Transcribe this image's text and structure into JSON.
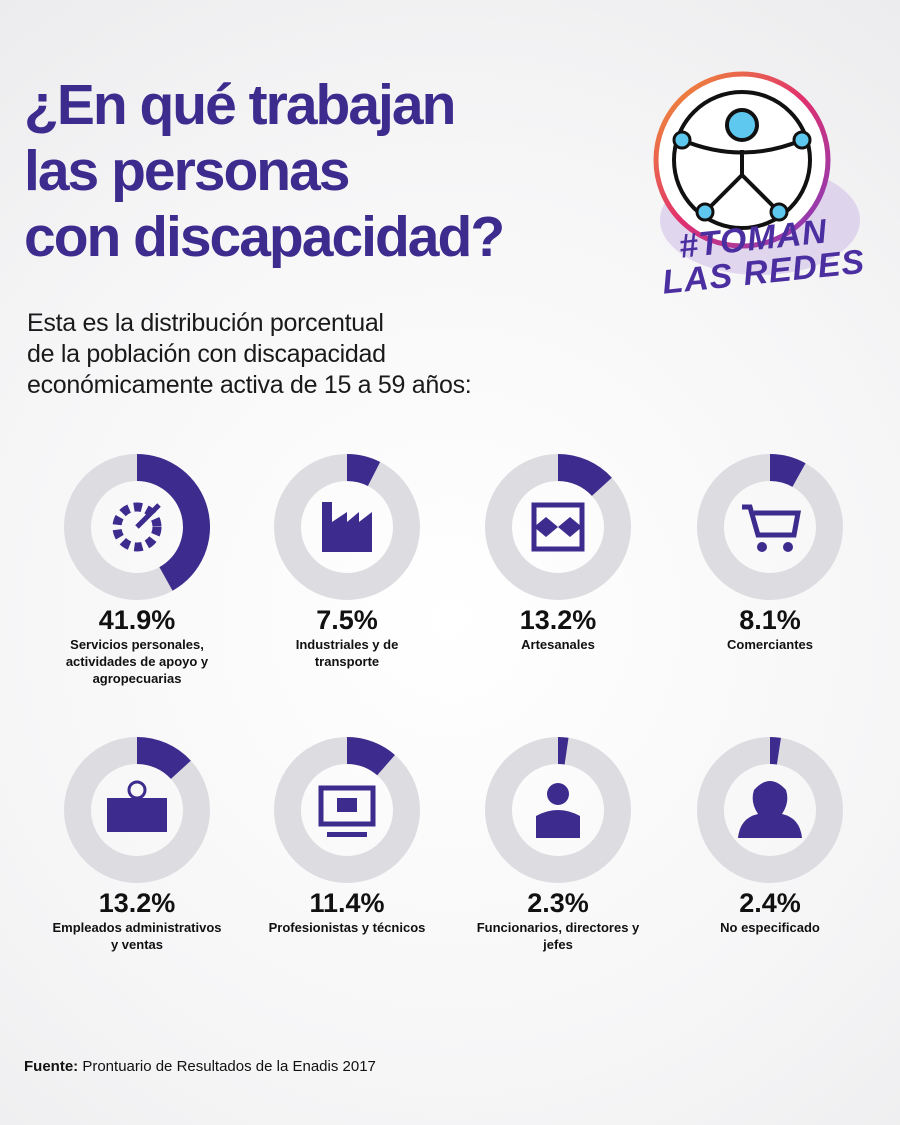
{
  "header": {
    "title_lines": [
      "¿En qué trabajan",
      "las personas",
      "con discapacidad?"
    ],
    "subtitle_lines": [
      "Esta es la distribución porcentual",
      "de la población con discapacidad",
      "económicamente activa de 15 a 59 años:"
    ],
    "logo_lines": [
      "#TOMAN",
      "LAS REDES"
    ]
  },
  "chart_data": [
    {
      "type": "donut",
      "categories": [
        "Servicios personales, actividades de apoyo y agropecuarias"
      ],
      "values": [
        41.9
      ],
      "value_labels": [
        "41.9%"
      ],
      "color": "#3d2b8e",
      "track_color": "#dddde1"
    },
    {
      "type": "donut",
      "categories": [
        "Industriales y de transporte"
      ],
      "values": [
        7.5
      ],
      "value_labels": [
        "7.5%"
      ],
      "color": "#3d2b8e",
      "track_color": "#dddde1"
    },
    {
      "type": "donut",
      "categories": [
        "Artesanales"
      ],
      "values": [
        13.2
      ],
      "value_labels": [
        "13.2%"
      ],
      "color": "#3d2b8e",
      "track_color": "#dddde1"
    },
    {
      "type": "donut",
      "categories": [
        "Comerciantes"
      ],
      "values": [
        8.1
      ],
      "value_labels": [
        "8.1%"
      ],
      "color": "#3d2b8e",
      "track_color": "#dddde1"
    },
    {
      "type": "donut",
      "categories": [
        "Empleados administrativos y ventas"
      ],
      "values": [
        13.2
      ],
      "value_labels": [
        "13.2%"
      ],
      "color": "#3d2b8e",
      "track_color": "#dddde1"
    },
    {
      "type": "donut",
      "categories": [
        "Profesionistas y técnicos"
      ],
      "values": [
        11.4
      ],
      "value_labels": [
        "11.4%"
      ],
      "color": "#3d2b8e",
      "track_color": "#dddde1"
    },
    {
      "type": "donut",
      "categories": [
        "Funcionarios, directores y jefes"
      ],
      "values": [
        2.3
      ],
      "value_labels": [
        "2.3%"
      ],
      "color": "#3d2b8e",
      "track_color": "#dddde1"
    },
    {
      "type": "donut",
      "categories": [
        "No especificado"
      ],
      "values": [
        2.4
      ],
      "value_labels": [
        "2.4%"
      ],
      "color": "#3d2b8e",
      "track_color": "#dddde1"
    }
  ],
  "footer": {
    "source_label": "Fuente:",
    "source": "Prontuario de Resultados de la Enadis 2017"
  }
}
